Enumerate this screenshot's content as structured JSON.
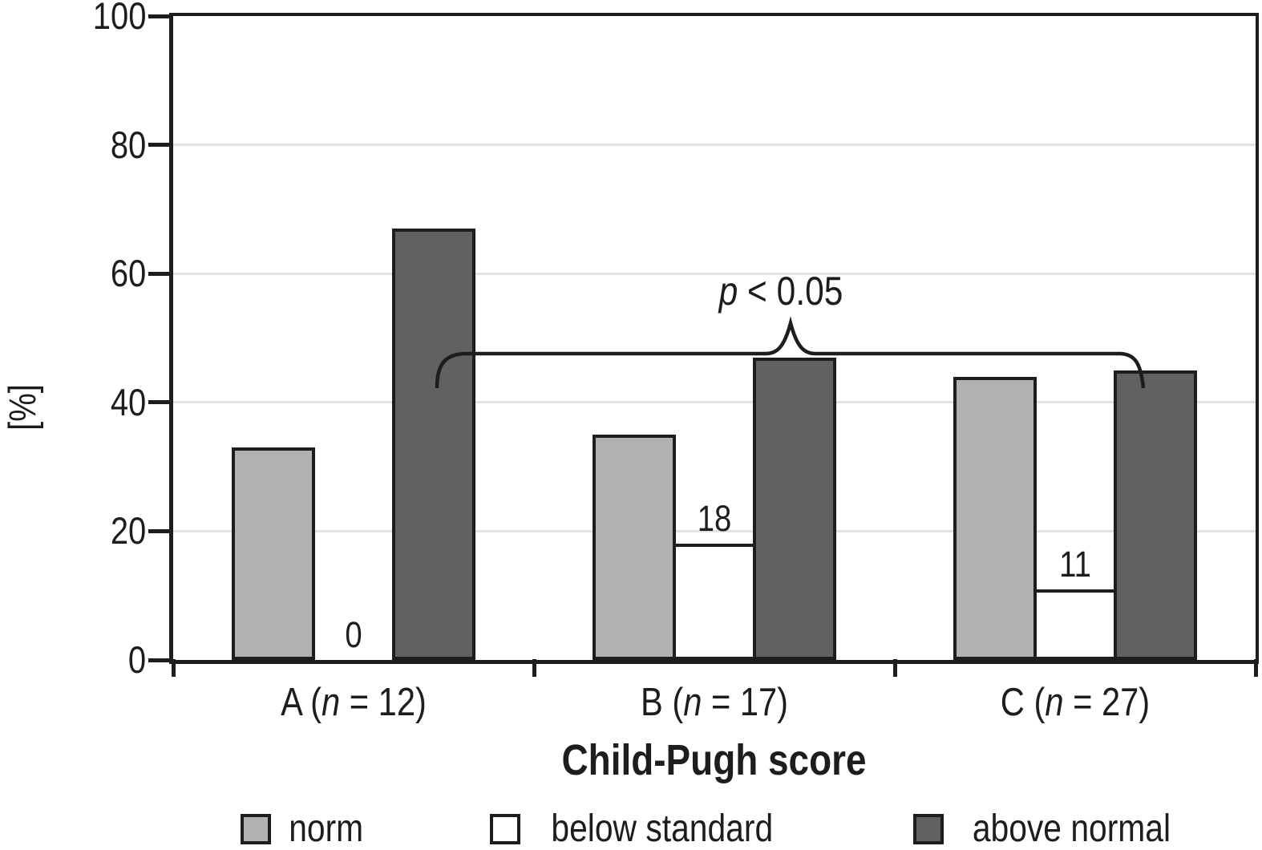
{
  "chart_data": {
    "type": "bar",
    "title": "",
    "xlabel": "Child-Pugh score",
    "ylabel": "[%]",
    "ylim": [
      0,
      100
    ],
    "yticks": [
      0,
      20,
      40,
      60,
      80,
      100
    ],
    "grid": true,
    "legend_position": "bottom",
    "categories": [
      "A (n = 12)",
      "B (n = 17)",
      "C (n = 27)"
    ],
    "category_parts": [
      {
        "pre": "A (",
        "n": "n",
        "post": " = 12)"
      },
      {
        "pre": "B (",
        "n": "n",
        "post": " = 17)"
      },
      {
        "pre": "C (",
        "n": "n",
        "post": " = 27)"
      }
    ],
    "series": [
      {
        "name": "norm",
        "color": "#b1b1b4",
        "values": [
          33,
          35,
          44
        ]
      },
      {
        "name": "below standard",
        "color": "#ffffff",
        "values": [
          0,
          18,
          11
        ],
        "value_labels": [
          "0",
          "18",
          "11"
        ]
      },
      {
        "name": "above normal",
        "color": "#616164",
        "values": [
          67,
          47,
          45
        ]
      }
    ],
    "annotation": {
      "p": "p",
      "rest": " < 0.05"
    },
    "colors": {
      "outline": "#1d1d1b",
      "gridline": "#e2e2e2",
      "background": "#ffffff"
    }
  }
}
